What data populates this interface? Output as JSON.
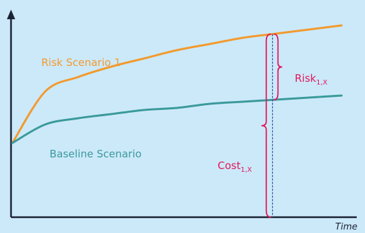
{
  "chart_data": {
    "type": "line",
    "title": "",
    "xlabel": "Time",
    "ylabel": "",
    "grid": false,
    "legend": "none",
    "x": [
      0,
      0.1,
      0.2,
      0.3,
      0.4,
      0.5,
      0.6,
      0.7,
      0.8,
      0.9,
      1.0
    ],
    "series": [
      {
        "name": "Risk Scenario 1",
        "color": "#f29a2e",
        "values": [
          0.36,
          0.61,
          0.68,
          0.73,
          0.77,
          0.81,
          0.84,
          0.87,
          0.89,
          0.91,
          0.93
        ]
      },
      {
        "name": "Baseline Scenario",
        "color": "#3a9a9a",
        "values": [
          0.36,
          0.45,
          0.48,
          0.5,
          0.52,
          0.53,
          0.55,
          0.56,
          0.57,
          0.58,
          0.59
        ]
      }
    ],
    "marker_x": 0.79,
    "annotations": {
      "risk_base": "Risk",
      "risk_sub": "1,X",
      "cost_base": "Cost",
      "cost_sub": "1,X",
      "color": "#e0185a"
    },
    "colors": {
      "background": "#cce9fa",
      "axis": "#1a2233",
      "marker": "#2a4a9a"
    }
  }
}
